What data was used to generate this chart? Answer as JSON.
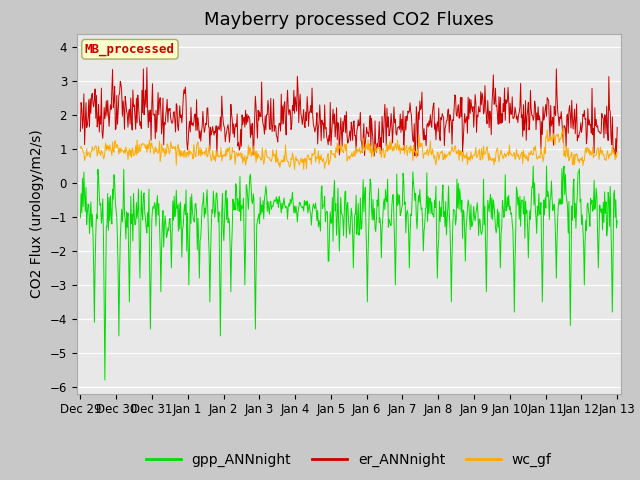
{
  "title": "Mayberry processed CO2 Fluxes",
  "ylabel": "CO2 Flux (urology/m2/s)",
  "ylim": [
    -6.2,
    4.4
  ],
  "yticks": [
    -6.0,
    -5.0,
    -4.0,
    -3.0,
    -2.0,
    -1.0,
    0.0,
    1.0,
    2.0,
    3.0,
    4.0
  ],
  "xlim_days": [
    -0.1,
    15.1
  ],
  "xtick_labels": [
    "Dec 29",
    "Dec 30",
    "Dec 31",
    "Jan 1",
    "Jan 2",
    "Jan 3",
    "Jan 4",
    "Jan 5",
    "Jan 6",
    "Jan 7",
    "Jan 8",
    "Jan 9",
    "Jan 10",
    "Jan 11",
    "Jan 12",
    "Jan 13"
  ],
  "n_points": 768,
  "color_gpp": "#00dd00",
  "color_er": "#cc0000",
  "color_wc": "#ffaa00",
  "legend_labels": [
    "gpp_ANNnight",
    "er_ANNnight",
    "wc_gf"
  ],
  "inset_label": "MB_processed",
  "inset_color": "#cc0000",
  "inset_bg": "#ffffcc",
  "background_color": "#c8c8c8",
  "plot_bg": "#e8e8e8",
  "grid_color": "#ffffff",
  "title_fontsize": 13,
  "label_fontsize": 10,
  "tick_fontsize": 8.5,
  "line_width": 0.7
}
